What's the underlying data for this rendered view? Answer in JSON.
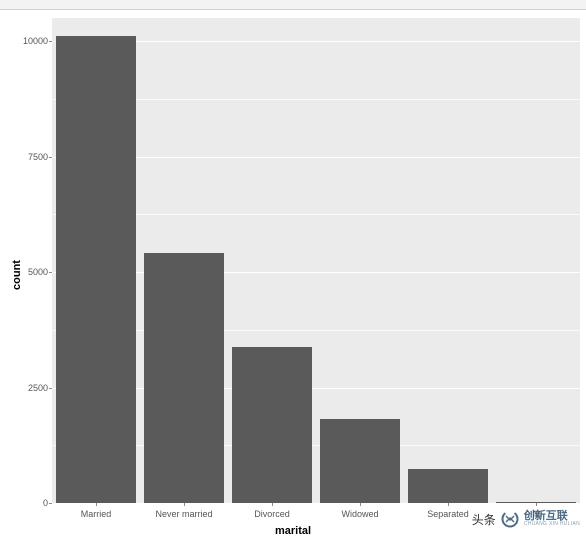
{
  "chart": {
    "type": "bar",
    "xlabel": "marital",
    "ylabel": "count",
    "xlabel_fontsize": 11,
    "ylabel_fontsize": 11,
    "label_fontweight": "bold",
    "tick_fontsize": 9,
    "tick_color": "#555555",
    "plot_background": "#ebebeb",
    "panel_background": "#ffffff",
    "grid_color": "#ffffff",
    "bar_color": "#5a5a5a",
    "ylim": [
      0,
      10500
    ],
    "ytick_step": 2500,
    "yticks": [
      0,
      2500,
      5000,
      7500,
      10000
    ],
    "categories": [
      "Married",
      "Never married",
      "Divorced",
      "Widowed",
      "Separated",
      "N"
    ],
    "values": [
      10100,
      5420,
      3380,
      1810,
      740,
      30
    ],
    "bar_width_ratio": 0.9
  },
  "watermark": {
    "prefix": "头条",
    "brand_main": "创新互联",
    "brand_sub": "CHUANG XIN HULIAN",
    "logo_color": "#4a6b8a"
  }
}
